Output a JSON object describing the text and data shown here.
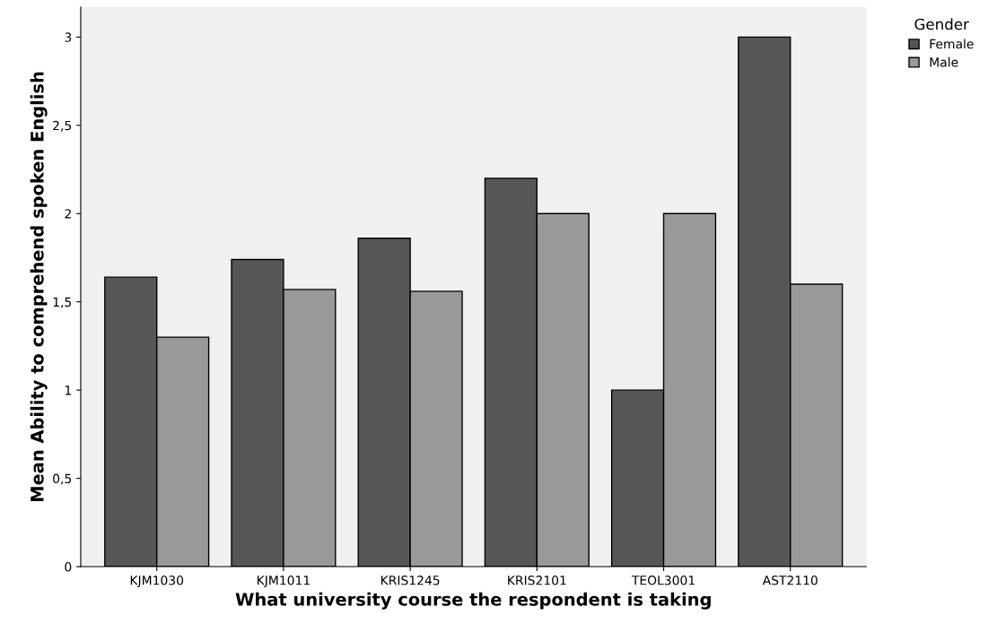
{
  "chart_data": {
    "type": "bar",
    "xlabel": "What university course the respondent is taking",
    "ylabel": "Mean Ability to comprehend spoken English",
    "legend_title": "Gender",
    "categories": [
      "KJM1030",
      "KJM1011",
      "KRIS1245",
      "KRIS2101",
      "TEOL3001",
      "AST2110"
    ],
    "series": [
      {
        "name": "Female",
        "color": "#575757",
        "values": [
          1.64,
          1.74,
          1.86,
          2.2,
          1.0,
          3.0
        ]
      },
      {
        "name": "Male",
        "color": "#999999",
        "values": [
          1.3,
          1.57,
          1.56,
          2.0,
          2.0,
          1.6
        ]
      }
    ],
    "ylim": [
      0,
      3.17
    ],
    "yticks": [
      0,
      {
        "value": 0.5,
        "label": "0,5"
      },
      1,
      {
        "value": 1.5,
        "label": "1,5"
      },
      2,
      {
        "value": 2.5,
        "label": "2,5"
      },
      3
    ],
    "grid": false,
    "legend": "top right"
  }
}
